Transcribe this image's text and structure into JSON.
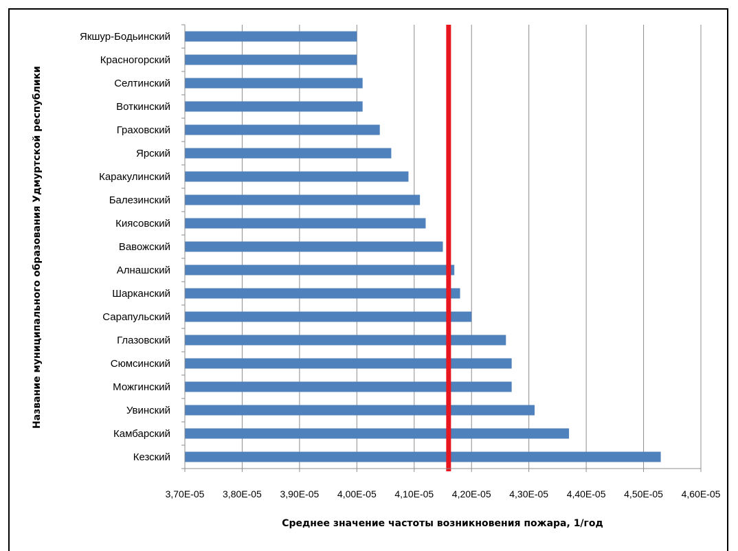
{
  "chart_data": {
    "type": "bar",
    "orientation": "horizontal",
    "categories": [
      "Якшур-Бодьинский",
      "Красногорский",
      "Селтинский",
      "Воткинский",
      "Граховский",
      "Ярский",
      "Каракулинский",
      "Балезинский",
      "Киясовский",
      "Вавожский",
      "Алнашский",
      "Шарканский",
      "Сарапульский",
      "Глазовский",
      "Сюмсинский",
      "Можгинский",
      "Увинский",
      "Камбарский",
      "Кезский"
    ],
    "values": [
      4e-05,
      4e-05,
      4.01e-05,
      4.01e-05,
      4.04e-05,
      4.06e-05,
      4.09e-05,
      4.11e-05,
      4.12e-05,
      4.15e-05,
      4.17e-05,
      4.18e-05,
      4.2e-05,
      4.26e-05,
      4.27e-05,
      4.27e-05,
      4.31e-05,
      4.37e-05,
      4.53e-05
    ],
    "xlim": [
      3.7e-05,
      4.6e-05
    ],
    "xticks": [
      "3,70E-05",
      "3,80E-05",
      "3,90E-05",
      "4,00E-05",
      "4,10E-05",
      "4,20E-05",
      "4,30E-05",
      "4,40E-05",
      "4,50E-05",
      "4,60E-05"
    ],
    "xlabel": "Среднее значение частоты возникновения  пожара, 1/год",
    "ylabel": "Название муниципального  образования  Удмуртской  республики",
    "reference_line": {
      "value": 4.16e-05,
      "color": "#e8161f"
    },
    "bar_color": "#4f81bd",
    "grid": "vertical"
  }
}
